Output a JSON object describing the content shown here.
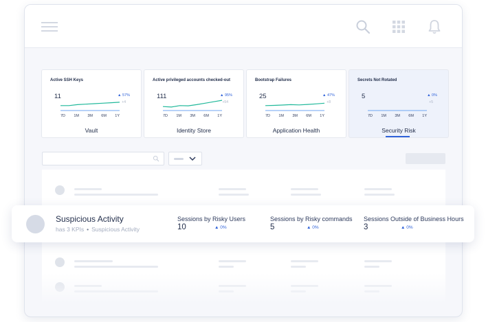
{
  "colors": {
    "accent": "#2f62d9",
    "trend_line": "#1fb89a",
    "baseline": "#6fa5f0"
  },
  "icons": {
    "menu": "hamburger-menu-icon",
    "search": "search-icon",
    "apps": "app-grid-icon",
    "notifications": "bell-icon",
    "filter_search": "search-icon",
    "dropdown": "chevron-down-icon"
  },
  "kpis": [
    {
      "name": "Active SSH Keys",
      "value": "11",
      "delta": "▲ 57%",
      "sub": "+4",
      "label": "Vault",
      "ranges": [
        "7D",
        "1M",
        "3M",
        "6M",
        "1Y"
      ],
      "trend": [
        3,
        3,
        4,
        4.5,
        5,
        5.5,
        6,
        6.5
      ]
    },
    {
      "name": "Active privileged accounts checked-out",
      "value": "111",
      "delta": "▲ 95%",
      "sub": "+54",
      "label": "Identity Store",
      "ranges": [
        "7D",
        "1M",
        "3M",
        "6M",
        "1Y"
      ],
      "trend": [
        2,
        1.5,
        3,
        2.8,
        4,
        5.5,
        7,
        8.5
      ]
    },
    {
      "name": "Bootstrap Failures",
      "value": "25",
      "delta": "▲ 47%",
      "sub": "+8",
      "label": "Application Health",
      "ranges": [
        "7D",
        "1M",
        "3M",
        "6M",
        "1Y"
      ],
      "trend": [
        3,
        3.2,
        3.6,
        4,
        3.7,
        4.2,
        4.8,
        5.5
      ]
    },
    {
      "name": "Secrets Not Rotated",
      "value": "5",
      "delta": "▲ 0%",
      "sub": "+5",
      "label": "Security Risk",
      "ranges": [
        "7D",
        "1M",
        "3M",
        "6M",
        "1Y"
      ],
      "trend": [],
      "selected": true
    }
  ],
  "featured": {
    "title": "Suspicious Activity",
    "subtitle_kpis": "has 3 KPIs",
    "separator": "•",
    "subtitle_name": "Suspicious Activity",
    "metrics": [
      {
        "label": "Sessions by Risky Users",
        "value": "10",
        "delta": "▲ 0%"
      },
      {
        "label": "Sessions by Risky commands",
        "value": "5",
        "delta": "▲ 0%"
      },
      {
        "label": "Sessions Outside of Business Hours",
        "value": "3",
        "delta": "▲ 0%"
      }
    ]
  }
}
